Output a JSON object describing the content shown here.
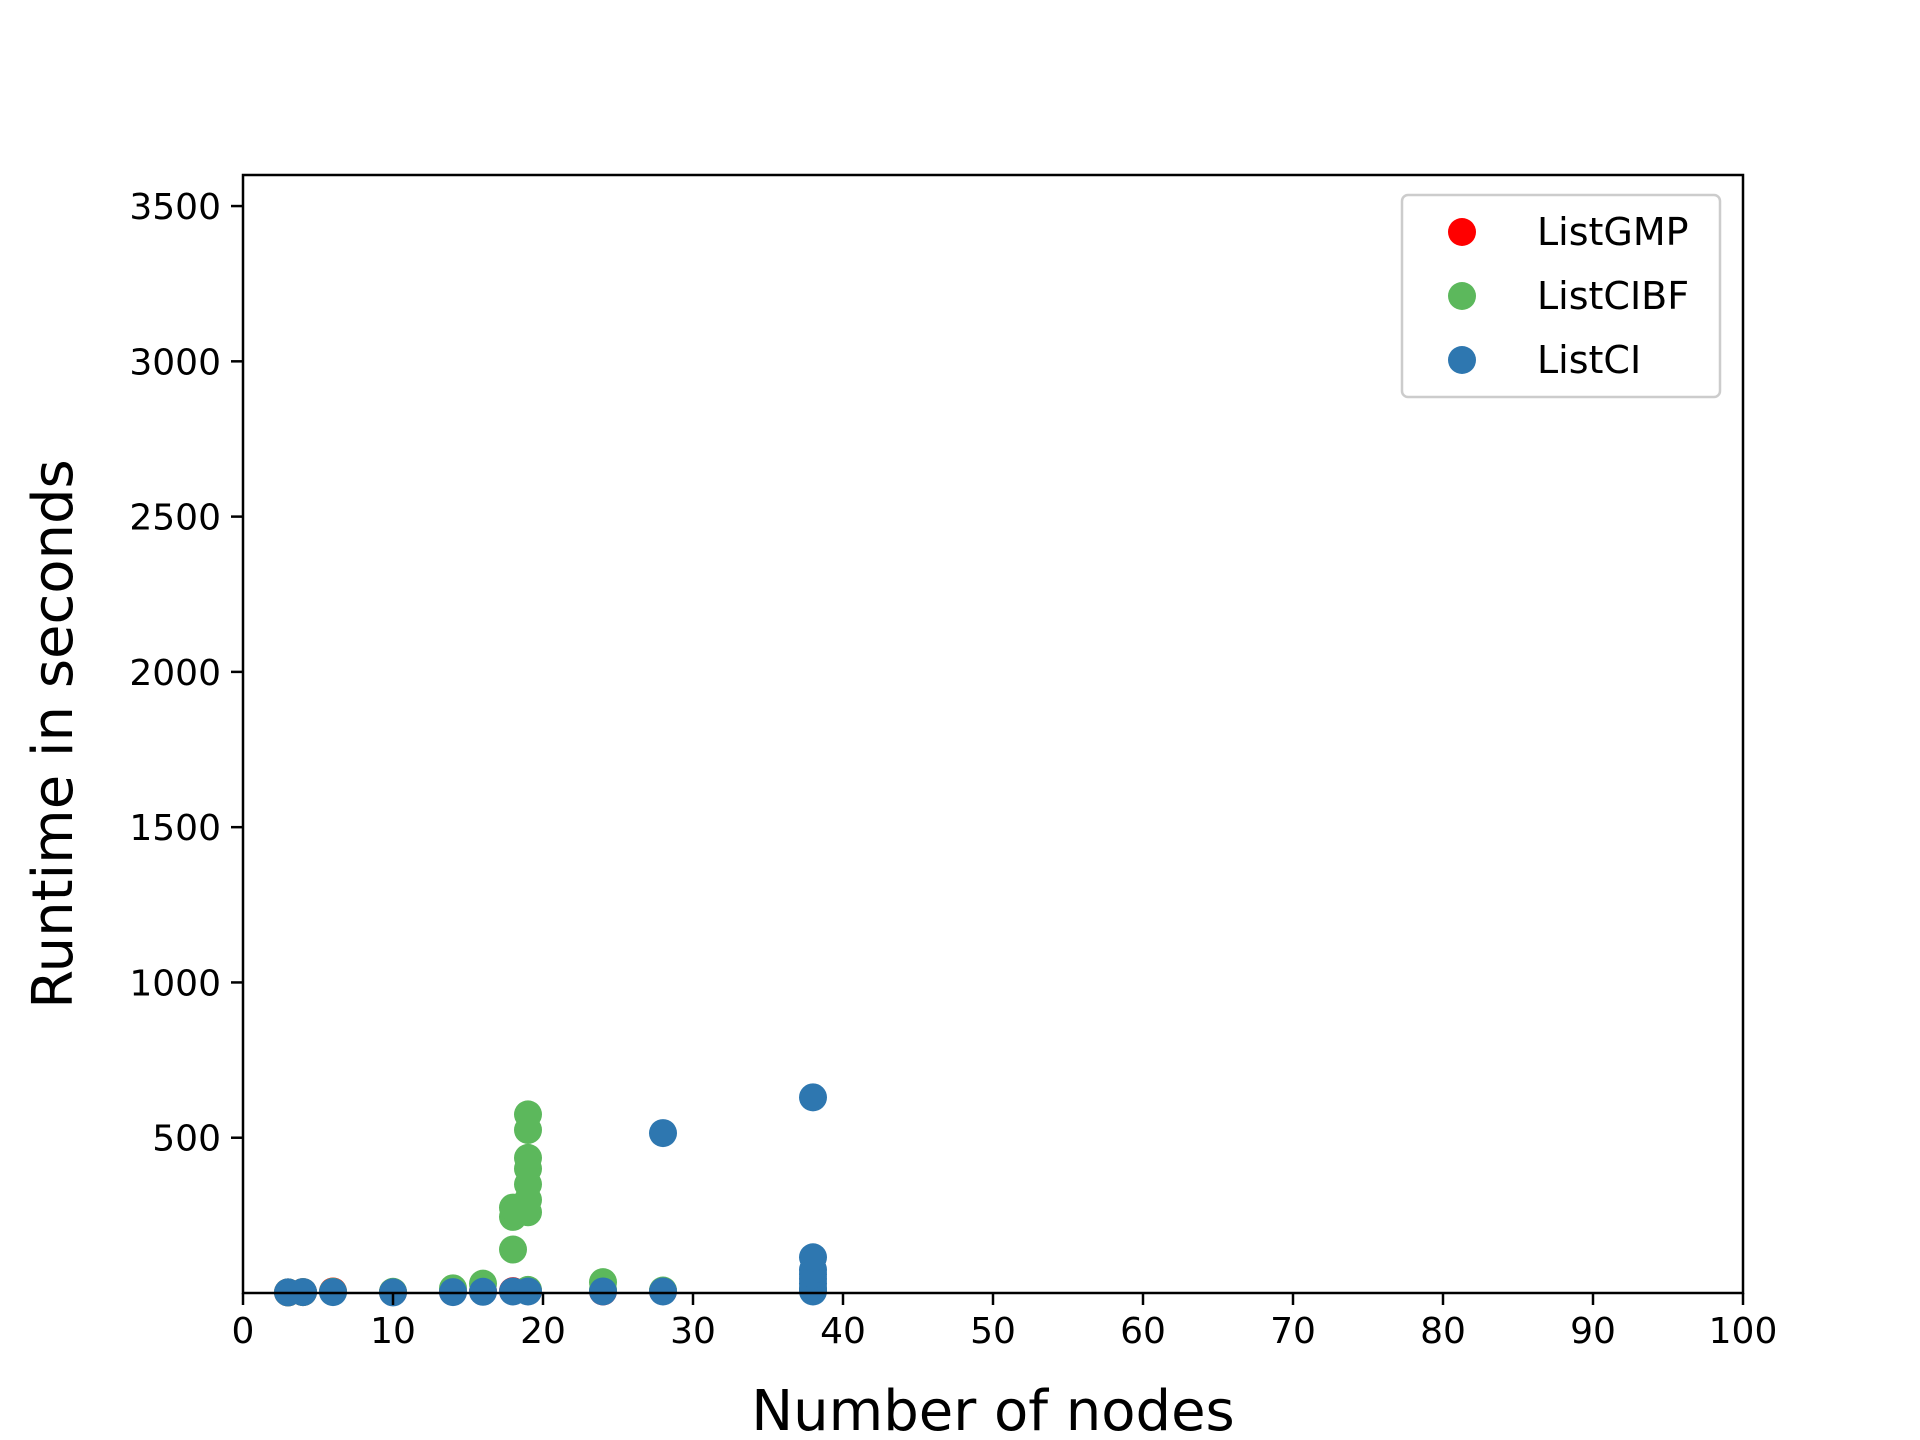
{
  "chart_data": {
    "type": "scatter",
    "title": "",
    "xlabel": "Number of nodes",
    "ylabel": "Runtime in seconds",
    "xlim": [
      0,
      100
    ],
    "ylim": [
      0,
      3600
    ],
    "xticks": [
      "0",
      "10",
      "20",
      "30",
      "40",
      "50",
      "60",
      "70",
      "80",
      "90",
      "100"
    ],
    "yticks": [
      "500",
      "1000",
      "1500",
      "2000",
      "2500",
      "3000",
      "3500"
    ],
    "grid": false,
    "legend_position": "top-right",
    "series": [
      {
        "name": "ListGMP",
        "color": "#ff0000",
        "points": [
          [
            3,
            2
          ],
          [
            4,
            3
          ],
          [
            6,
            5
          ],
          [
            10,
            3
          ],
          [
            14,
            4
          ],
          [
            16,
            5
          ],
          [
            18,
            6
          ],
          [
            19,
            6
          ],
          [
            24,
            5
          ],
          [
            28,
            6
          ],
          [
            38,
            8
          ]
        ]
      },
      {
        "name": "ListCIBF",
        "color": "#5cb85c",
        "points": [
          [
            3,
            2
          ],
          [
            4,
            3
          ],
          [
            6,
            4
          ],
          [
            10,
            4
          ],
          [
            14,
            15
          ],
          [
            16,
            30
          ],
          [
            18,
            140
          ],
          [
            18,
            245
          ],
          [
            18,
            275
          ],
          [
            19,
            10
          ],
          [
            19,
            260
          ],
          [
            19,
            300
          ],
          [
            19,
            350
          ],
          [
            19,
            400
          ],
          [
            19,
            435
          ],
          [
            19,
            525
          ],
          [
            19,
            575
          ],
          [
            24,
            35
          ],
          [
            24,
            10
          ],
          [
            28,
            8
          ],
          [
            38,
            10
          ]
        ]
      },
      {
        "name": "ListCI",
        "color": "#2e77b0",
        "points": [
          [
            3,
            2
          ],
          [
            4,
            3
          ],
          [
            6,
            3
          ],
          [
            10,
            2
          ],
          [
            14,
            3
          ],
          [
            16,
            4
          ],
          [
            18,
            5
          ],
          [
            19,
            5
          ],
          [
            24,
            5
          ],
          [
            28,
            5
          ],
          [
            28,
            515
          ],
          [
            38,
            5
          ],
          [
            38,
            15
          ],
          [
            38,
            30
          ],
          [
            38,
            45
          ],
          [
            38,
            60
          ],
          [
            38,
            75
          ],
          [
            38,
            115
          ],
          [
            38,
            630
          ]
        ]
      }
    ]
  }
}
